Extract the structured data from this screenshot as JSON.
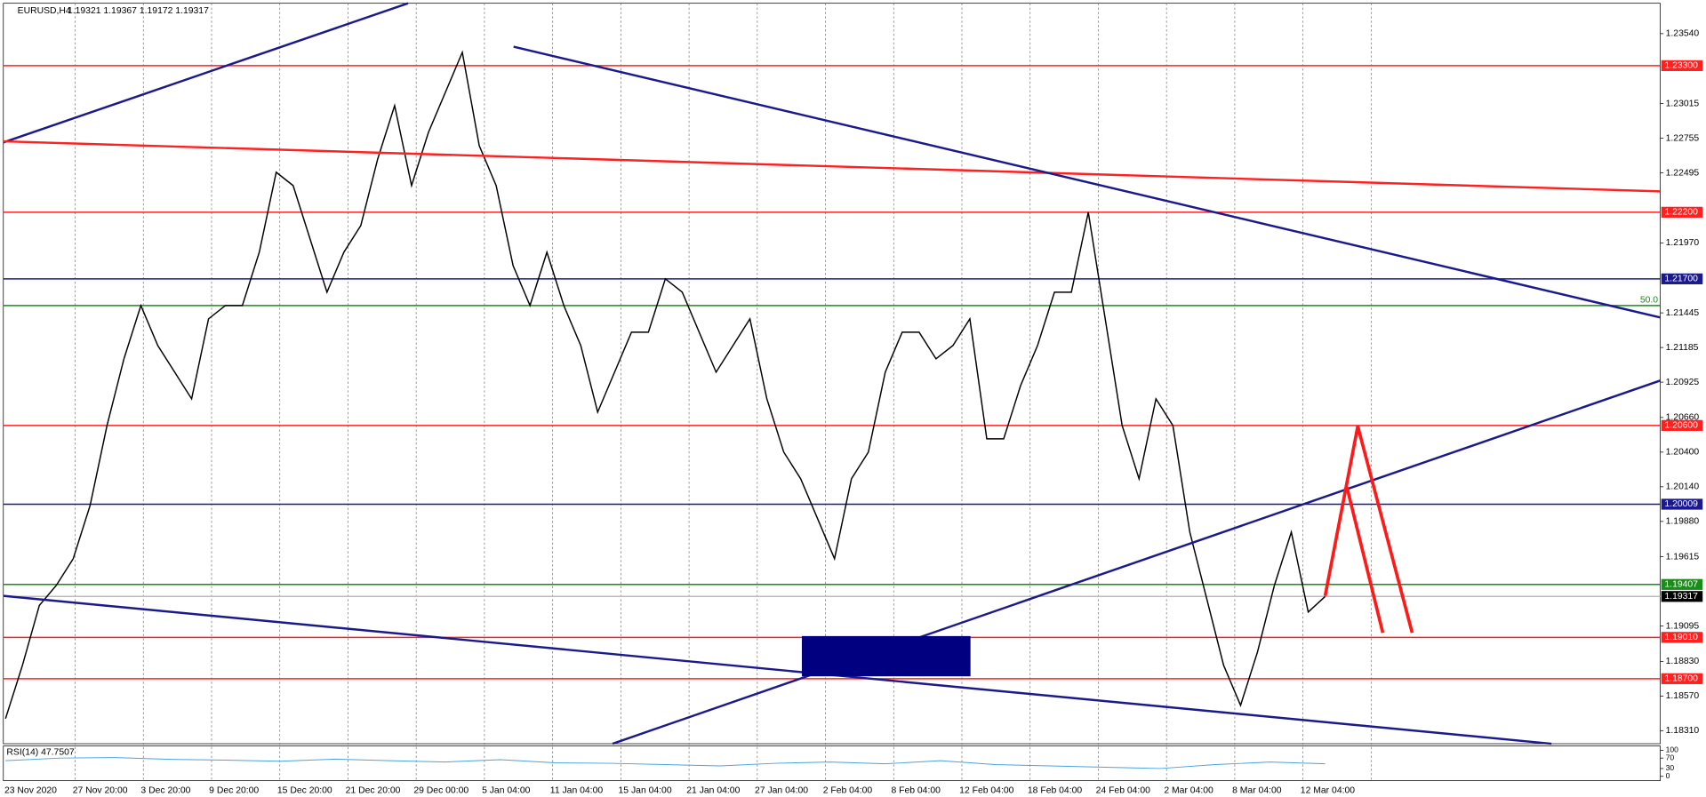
{
  "header": {
    "title": "EURUSD,H4",
    "quote": "1.19321 1.19367 1.19172 1.19317"
  },
  "chart": {
    "ylim": [
      1.18212,
      1.23768
    ],
    "yticks": [
      {
        "value": 1.2354,
        "label": "1.23540"
      },
      {
        "value": 1.23015,
        "label": "1.23015"
      },
      {
        "value": 1.22755,
        "label": "1.22755"
      },
      {
        "value": 1.22495,
        "label": "1.22495"
      },
      {
        "value": 1.2197,
        "label": "1.21970"
      },
      {
        "value": 1.21445,
        "label": "1.21445"
      },
      {
        "value": 1.21185,
        "label": "1.21185"
      },
      {
        "value": 1.20925,
        "label": "1.20925"
      },
      {
        "value": 1.2066,
        "label": "1.20660"
      },
      {
        "value": 1.204,
        "label": "1.20400"
      },
      {
        "value": 1.2014,
        "label": "1.20140"
      },
      {
        "value": 1.1988,
        "label": "1.19880"
      },
      {
        "value": 1.19615,
        "label": "1.19615"
      },
      {
        "value": 1.19095,
        "label": "1.19095"
      },
      {
        "value": 1.1883,
        "label": "1.18830"
      },
      {
        "value": 1.1857,
        "label": "1.18570"
      },
      {
        "value": 1.1831,
        "label": "1.18310"
      }
    ],
    "levels": [
      {
        "value": 1.233,
        "label": "1.23300",
        "color": "#ff2020"
      },
      {
        "value": 1.222,
        "label": "1.22200",
        "color": "#ff2020"
      },
      {
        "value": 1.217,
        "label": "1.21700",
        "color": "#1a1a8c"
      },
      {
        "value": 1.206,
        "label": "1.20600",
        "color": "#ff2020"
      },
      {
        "value": 1.20009,
        "label": "1.20009",
        "color": "#1a1a8c"
      },
      {
        "value": 1.19407,
        "label": "1.19407",
        "color": "#1a8c1a"
      },
      {
        "value": 1.19317,
        "label": "1.19317",
        "color": "#000000"
      },
      {
        "value": 1.1901,
        "label": "1.19010",
        "color": "#ff2020"
      },
      {
        "value": 1.187,
        "label": "1.18700",
        "color": "#ff2020"
      }
    ],
    "fib_level": {
      "value": 1.215,
      "label": "50.0",
      "color": "#1a8c1a"
    },
    "time_labels": [
      "23 Nov 2020",
      "27 Nov 20:00",
      "3 Dec 20:00",
      "9 Dec 20:00",
      "15 Dec 20:00",
      "21 Dec 20:00",
      "29 Dec 00:00",
      "5 Jan 04:00",
      "11 Jan 04:00",
      "15 Jan 04:00",
      "21 Jan 04:00",
      "27 Jan 04:00",
      "2 Feb 04:00",
      "8 Feb 04:00",
      "12 Feb 04:00",
      "18 Feb 04:00",
      "24 Feb 04:00",
      "2 Mar 04:00",
      "8 Mar 04:00",
      "12 Mar 04:00"
    ],
    "price": [
      1.184,
      1.188,
      1.1925,
      1.194,
      1.196,
      1.2,
      1.206,
      1.211,
      1.215,
      1.212,
      1.21,
      1.208,
      1.214,
      1.215,
      1.215,
      1.219,
      1.225,
      1.224,
      1.22,
      1.216,
      1.219,
      1.221,
      1.226,
      1.23,
      1.224,
      1.228,
      1.231,
      1.234,
      1.227,
      1.224,
      1.218,
      1.215,
      1.219,
      1.215,
      1.212,
      1.207,
      1.21,
      1.213,
      1.213,
      1.217,
      1.216,
      1.213,
      1.21,
      1.212,
      1.214,
      1.208,
      1.204,
      1.202,
      1.199,
      1.196,
      1.202,
      1.204,
      1.21,
      1.213,
      1.213,
      1.211,
      1.212,
      1.214,
      1.205,
      1.205,
      1.209,
      1.212,
      1.216,
      1.216,
      1.222,
      1.214,
      1.206,
      1.202,
      1.208,
      1.206,
      1.198,
      1.193,
      1.188,
      1.185,
      1.189,
      1.194,
      1.198,
      1.192,
      1.19317
    ],
    "rsi": {
      "label": "RSI(14) 47.7507",
      "ylim": [
        0,
        100
      ],
      "ticks": [
        100,
        70,
        30,
        0
      ],
      "values": [
        60,
        70,
        72,
        65,
        62,
        58,
        66,
        60,
        55,
        64,
        52,
        50,
        45,
        40,
        50,
        55,
        48,
        60,
        45,
        40,
        35,
        30,
        45,
        55,
        48
      ]
    }
  }
}
